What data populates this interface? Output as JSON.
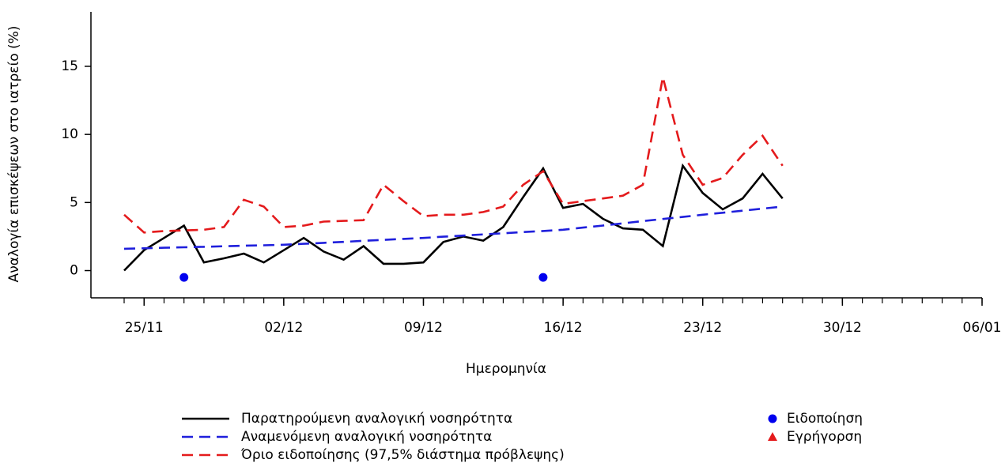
{
  "chart_data": {
    "type": "line",
    "x_label": "Ημερομηνία",
    "y_label": "Αναλογία επισκέψεων στο ιατρείο (%)",
    "x": [
      "24/11",
      "25/11",
      "26/11",
      "27/11",
      "28/11",
      "29/11",
      "30/11",
      "01/12",
      "02/12",
      "03/12",
      "04/12",
      "05/12",
      "06/12",
      "07/12",
      "08/12",
      "09/12",
      "10/12",
      "11/12",
      "12/12",
      "13/12",
      "14/12",
      "15/12",
      "16/12",
      "17/12",
      "18/12",
      "19/12",
      "20/12",
      "21/12",
      "22/12",
      "23/12",
      "24/12",
      "25/12",
      "26/12",
      "27/12"
    ],
    "series": [
      {
        "name": "Παρατηρούμενη αναλογική νοσηρότητα",
        "color": "#000000",
        "dash": "solid",
        "values": [
          0,
          1.5,
          2.4,
          3.3,
          0.6,
          0.9,
          1.25,
          0.6,
          1.5,
          2.4,
          1.4,
          0.8,
          1.8,
          0.5,
          0.5,
          0.6,
          2.1,
          2.5,
          2.2,
          3.2,
          5.4,
          7.5,
          4.6,
          4.9,
          3.8,
          3.1,
          3.0,
          1.8,
          7.7,
          5.7,
          4.5,
          5.3,
          7.1,
          5.3
        ]
      },
      {
        "name": "Αναμενόμενη αναλογική νοσηρότητα",
        "color": "#1f1fdc",
        "dash": "dashed",
        "values": [
          1.6,
          1.64,
          1.68,
          1.71,
          1.75,
          1.79,
          1.83,
          1.86,
          1.9,
          1.97,
          2.04,
          2.11,
          2.19,
          2.26,
          2.33,
          2.4,
          2.49,
          2.57,
          2.66,
          2.74,
          2.83,
          2.91,
          3.0,
          3.16,
          3.31,
          3.47,
          3.63,
          3.79,
          3.94,
          4.1,
          4.25,
          4.4,
          4.55,
          4.7
        ]
      },
      {
        "name": "Όριο ειδοποίησης (97,5% διάστημα πρόβλεψης)",
        "color": "#e41a1c",
        "dash": "dashed",
        "values": [
          4.1,
          2.8,
          2.9,
          2.95,
          3.0,
          3.2,
          5.2,
          4.7,
          3.2,
          3.3,
          3.6,
          3.65,
          3.7,
          6.3,
          5.1,
          4.0,
          4.1,
          4.1,
          4.3,
          4.7,
          6.3,
          7.3,
          4.9,
          5.1,
          5.3,
          5.5,
          6.3,
          14.2,
          8.5,
          6.3,
          6.8,
          8.5,
          9.9,
          7.7
        ]
      }
    ],
    "markers": [
      {
        "name": "Ειδοποίηση",
        "color": "#0000ee",
        "marker": "circle",
        "x": [
          "27/11",
          "15/12"
        ],
        "values": [
          -0.5,
          -0.5
        ]
      },
      {
        "name": "Εγρήγορση",
        "color": "#e41a1c",
        "marker": "triangle",
        "x": [],
        "values": []
      }
    ],
    "xlim": [
      "24/11",
      "06/01"
    ],
    "xticks": [
      "25/11",
      "02/12",
      "09/12",
      "16/12",
      "23/12",
      "30/12",
      "06/01"
    ],
    "ylim": [
      -2,
      19
    ],
    "yticks": [
      0,
      5,
      10,
      15
    ]
  }
}
